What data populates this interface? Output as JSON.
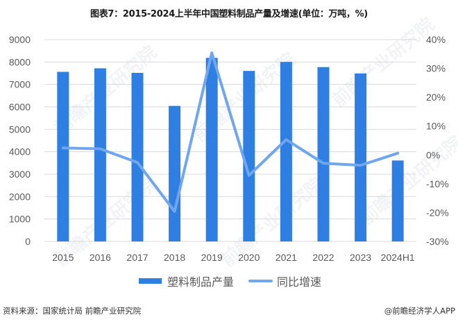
{
  "title": "图表7：2015-2024上半年中国塑料制品产量及增速(单位：万吨，%)",
  "chart_data": {
    "type": "bar+line",
    "title": "图表7：2015-2024上半年中国塑料制品产量及增速(单位：万吨，%)",
    "categories": [
      "2015",
      "2016",
      "2017",
      "2018",
      "2019",
      "2020",
      "2021",
      "2022",
      "2023",
      "2024H1"
    ],
    "series": [
      {
        "name": "塑料制品产量",
        "type": "bar",
        "axis": "left",
        "color": "#2F7FE3",
        "values": [
          7561,
          7718,
          7516,
          6042,
          8184,
          7603,
          8004,
          7772,
          7489,
          3609
        ]
      },
      {
        "name": "同比增速",
        "type": "line",
        "axis": "right",
        "color": "#6FA6EE",
        "values": [
          2.4,
          2.1,
          -2.6,
          -19.6,
          35.4,
          -7.1,
          5.3,
          -2.9,
          -3.6,
          0.6
        ]
      }
    ],
    "left_axis": {
      "ylim": [
        0,
        9000
      ],
      "ticks": [
        "0",
        "1000",
        "2000",
        "3000",
        "4000",
        "5000",
        "6000",
        "7000",
        "8000",
        "9000"
      ],
      "unit": "万吨"
    },
    "right_axis": {
      "ylim": [
        -30,
        40
      ],
      "ticks": [
        "-30%",
        "-20%",
        "-10%",
        "0%",
        "10%",
        "20%",
        "30%",
        "40%"
      ],
      "unit": "%"
    },
    "grid": true,
    "legend_position": "bottom"
  },
  "legend": {
    "bar_label": "塑料制品产量",
    "line_label": "同比增速"
  },
  "footer": {
    "source": "资料来源：国家统计局 前瞻产业研究院",
    "credit": "@前瞻经济学人APP"
  },
  "watermark": "前瞻产业研究院"
}
